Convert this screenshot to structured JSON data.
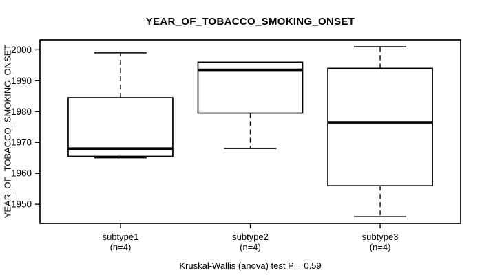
{
  "figure": {
    "title": "YEAR_OF_TOBACCO_SMOKING_ONSET",
    "y_axis_title": "YEAR_OF_TOBACCO_SMOKING_ONSET",
    "caption": "Kruskal-Wallis (anova) test P = 0.59"
  },
  "chart_data": {
    "type": "boxplot",
    "title": "YEAR_OF_TOBACCO_SMOKING_ONSET",
    "xlabel": "",
    "ylabel": "YEAR_OF_TOBACCO_SMOKING_ONSET",
    "categories": [
      "subtype1",
      "subtype2",
      "subtype3"
    ],
    "category_sublabels": [
      "(n=4)",
      "(n=4)",
      "(n=4)"
    ],
    "sample_sizes": [
      4,
      4,
      4
    ],
    "yticks": [
      1950,
      1960,
      1970,
      1980,
      1990,
      2000
    ],
    "ylim": [
      1943.8,
      2003.2
    ],
    "grid": false,
    "legend_position": "none",
    "series": [
      {
        "name": "subtype1",
        "n": 4,
        "min": 1965,
        "q1": 1965.5,
        "median": 1968,
        "q3": 1984.5,
        "max": 1999
      },
      {
        "name": "subtype2",
        "n": 4,
        "min": 1968,
        "q1": 1979.5,
        "median": 1993.5,
        "q3": 1996,
        "max": 1996
      },
      {
        "name": "subtype3",
        "n": 4,
        "min": 1946,
        "q1": 1956,
        "median": 1976.5,
        "q3": 1994,
        "max": 2001
      }
    ],
    "annotation": "Kruskal-Wallis (anova) test P = 0.59"
  },
  "colors": {
    "background": "#ffffff",
    "line": "#000000",
    "box_fill": "#ffffff"
  }
}
